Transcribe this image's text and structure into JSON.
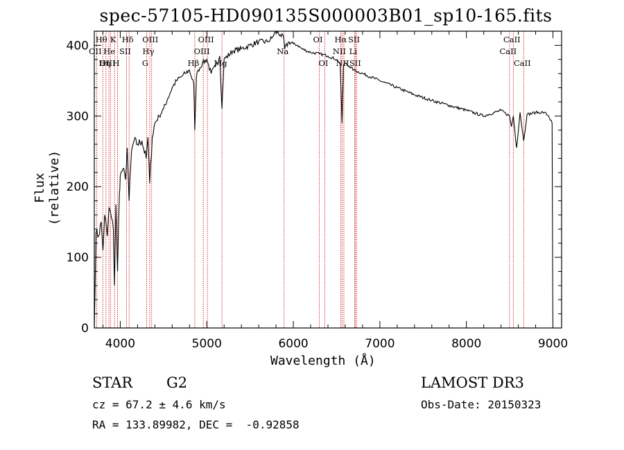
{
  "chart_data": {
    "type": "line",
    "title": "spec-57105-HD090135S000003B01_sp10-165.fits",
    "xlabel": "Wavelength (Å)",
    "ylabel": "Flux (relative)",
    "xlim": [
      3700,
      9100
    ],
    "ylim": [
      0,
      420
    ],
    "xticks": [
      4000,
      5000,
      6000,
      7000,
      8000,
      9000
    ],
    "yticks": [
      0,
      100,
      200,
      300,
      400
    ],
    "series": [
      {
        "name": "spectrum",
        "x": [
          3700,
          3720,
          3750,
          3780,
          3800,
          3820,
          3850,
          3870,
          3900,
          3920,
          3933,
          3950,
          3968,
          3990,
          4000,
          4030,
          4060,
          4080,
          4102,
          4130,
          4160,
          4200,
          4250,
          4300,
          4320,
          4340,
          4370,
          4400,
          4450,
          4500,
          4550,
          4600,
          4650,
          4700,
          4750,
          4800,
          4850,
          4861,
          4880,
          4900,
          4950,
          5000,
          5050,
          5100,
          5150,
          5175,
          5200,
          5300,
          5400,
          5500,
          5600,
          5700,
          5750,
          5800,
          5850,
          5890,
          5900,
          5950,
          6000,
          6050,
          6100,
          6200,
          6300,
          6400,
          6500,
          6540,
          6563,
          6580,
          6600,
          6650,
          6700,
          6800,
          7000,
          7200,
          7400,
          7600,
          7800,
          8000,
          8200,
          8400,
          8498,
          8520,
          8542,
          8580,
          8620,
          8662,
          8700,
          8800,
          8900,
          8950,
          8990,
          8998,
          9000
        ],
        "y": [
          0,
          135,
          130,
          150,
          110,
          160,
          130,
          170,
          155,
          140,
          60,
          175,
          80,
          190,
          215,
          225,
          210,
          255,
          180,
          250,
          265,
          260,
          265,
          240,
          270,
          205,
          270,
          290,
          300,
          310,
          325,
          340,
          350,
          355,
          360,
          365,
          345,
          280,
          355,
          365,
          375,
          380,
          360,
          370,
          385,
          310,
          380,
          392,
          395,
          400,
          405,
          405,
          410,
          420,
          415,
          410,
          395,
          405,
          402,
          400,
          395,
          390,
          388,
          385,
          380,
          375,
          290,
          372,
          375,
          370,
          365,
          360,
          350,
          340,
          330,
          322,
          315,
          308,
          300,
          308,
          300,
          285,
          300,
          255,
          305,
          265,
          302,
          305,
          305,
          300,
          290,
          30,
          0
        ]
      }
    ],
    "lines": [
      {
        "label": "Hθ",
        "x": 3798,
        "row": 1
      },
      {
        "label": "OII",
        "x": 3727,
        "row": 2
      },
      {
        "label": "OIII",
        "x": 3869,
        "row": 3
      },
      {
        "label": "K",
        "x": 3934,
        "row": 1
      },
      {
        "label": "He",
        "x": 3889,
        "row": 2
      },
      {
        "label": "Hη",
        "x": 3835,
        "row": 3
      },
      {
        "label": "H",
        "x": 3969,
        "row": 3
      },
      {
        "label": "SII",
        "x": 4072,
        "row": 2
      },
      {
        "label": "Hδ",
        "x": 4102,
        "row": 1
      },
      {
        "label": "OIII",
        "x": 4363,
        "row": 1
      },
      {
        "label": "Hγ",
        "x": 4341,
        "row": 2
      },
      {
        "label": "G",
        "x": 4305,
        "row": 3
      },
      {
        "label": "Hβ",
        "x": 4861,
        "row": 3
      },
      {
        "label": "OIII",
        "x": 5007,
        "row": 1
      },
      {
        "label": "OIII",
        "x": 4959,
        "row": 2
      },
      {
        "label": "Mg",
        "x": 5175,
        "row": 3
      },
      {
        "label": "Na",
        "x": 5893,
        "row": 2
      },
      {
        "label": "OI",
        "x": 6300,
        "row": 1
      },
      {
        "label": "OI",
        "x": 6364,
        "row": 3
      },
      {
        "label": "Hα",
        "x": 6563,
        "row": 1
      },
      {
        "label": "NII",
        "x": 6548,
        "row": 2
      },
      {
        "label": "NII",
        "x": 6584,
        "row": 3
      },
      {
        "label": "SII",
        "x": 6717,
        "row": 1
      },
      {
        "label": "Li",
        "x": 6707,
        "row": 2
      },
      {
        "label": "SII",
        "x": 6731,
        "row": 3
      },
      {
        "label": "CaII",
        "x": 8542,
        "row": 1
      },
      {
        "label": "CaII",
        "x": 8498,
        "row": 2
      },
      {
        "label": "CaII",
        "x": 8662,
        "row": 3
      }
    ]
  },
  "info": {
    "class_label": "STAR",
    "subclass": "G2",
    "survey": "LAMOST DR3",
    "cz": "cz = 67.2 ± 4.6 km/s",
    "obs_date": "Obs-Date: 20150323",
    "coords": "RA = 133.89982, DEC =  -0.92858"
  },
  "colors": {
    "line_marker": "#cc0000",
    "spectrum": "#000000"
  }
}
